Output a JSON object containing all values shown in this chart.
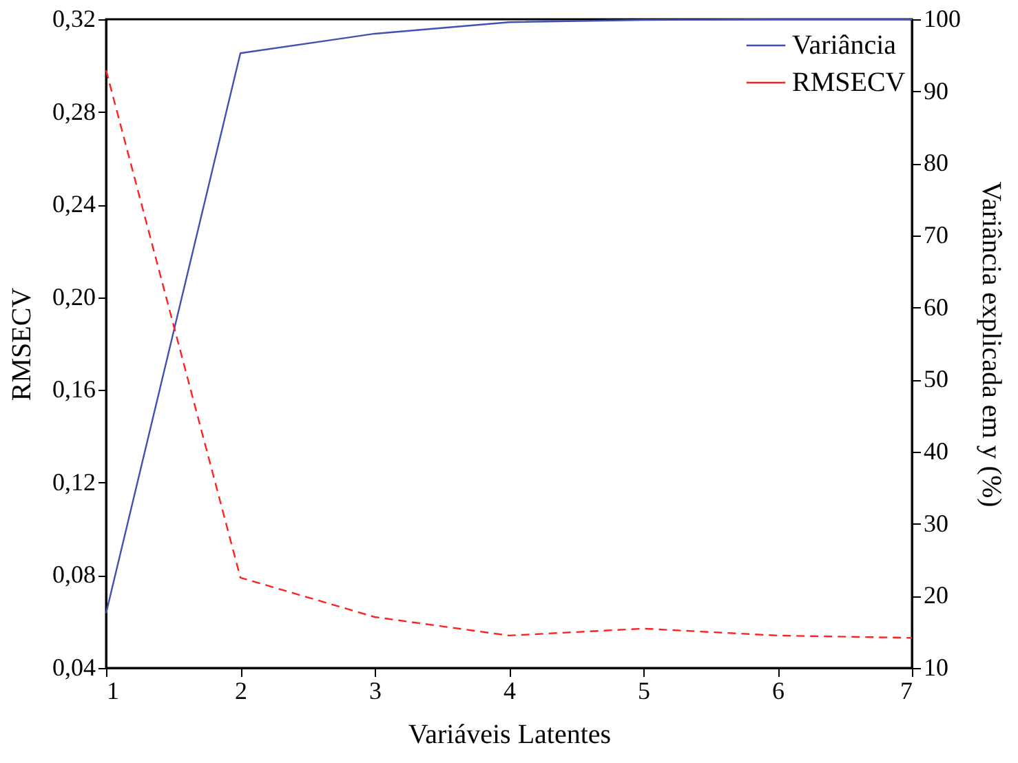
{
  "chart_data": {
    "type": "line",
    "xlabel": "Variáveis Latentes",
    "ylabel": "RMSECV",
    "y2label": "Variância explicada em y (%)",
    "x": [
      1,
      2,
      3,
      4,
      5,
      6,
      7
    ],
    "series": [
      {
        "name": "Variância",
        "color": "#3f51b5",
        "values": [
          17.6,
          95.3,
          98.0,
          99.6,
          99.9,
          100,
          100
        ],
        "axis": "y2",
        "line_style": "solid"
      },
      {
        "name": "RMSECV",
        "color": "#ff2020",
        "values": [
          0.298,
          0.079,
          0.062,
          0.054,
          0.057,
          0.054,
          0.053
        ],
        "line_style": "dashed"
      }
    ],
    "xlim": [
      1,
      7
    ],
    "xticks": [
      1,
      2,
      3,
      4,
      5,
      6,
      7
    ],
    "ylim": [
      0.04,
      0.32
    ],
    "yticks": [
      {
        "value": 0.04,
        "label": "0,04"
      },
      {
        "value": 0.08,
        "label": "0,08"
      },
      {
        "value": 0.12,
        "label": "0,12"
      },
      {
        "value": 0.16,
        "label": "0,16"
      },
      {
        "value": 0.2,
        "label": "0,20"
      },
      {
        "value": 0.24,
        "label": "0,24"
      },
      {
        "value": 0.28,
        "label": "0,28"
      },
      {
        "value": 0.32,
        "label": "0,32"
      }
    ],
    "y2lim": [
      10,
      100
    ],
    "y2ticks": [
      10,
      20,
      30,
      40,
      50,
      60,
      70,
      80,
      90,
      100
    ],
    "grid": false,
    "legend": "top right",
    "marker": "none"
  }
}
